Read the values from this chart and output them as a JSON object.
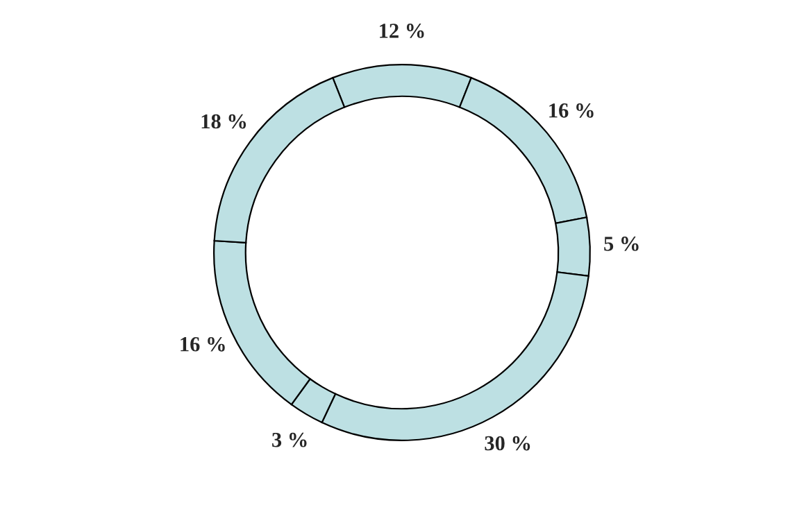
{
  "chart_data": {
    "type": "donut",
    "categories": [
      null,
      null,
      null,
      null,
      null,
      null,
      null
    ],
    "values": [
      12,
      16,
      5,
      30,
      3,
      16,
      18
    ],
    "value_labels": [
      "12 %",
      "16 %",
      "5 %",
      "30 %",
      "3 %",
      "16 %",
      "18 %"
    ],
    "colors": [
      "#bde0e3",
      "#bde0e3",
      "#bde0e3",
      "#bde0e3",
      "#bde0e3",
      "#bde0e3",
      "#bde0e3"
    ],
    "legend": false
  }
}
